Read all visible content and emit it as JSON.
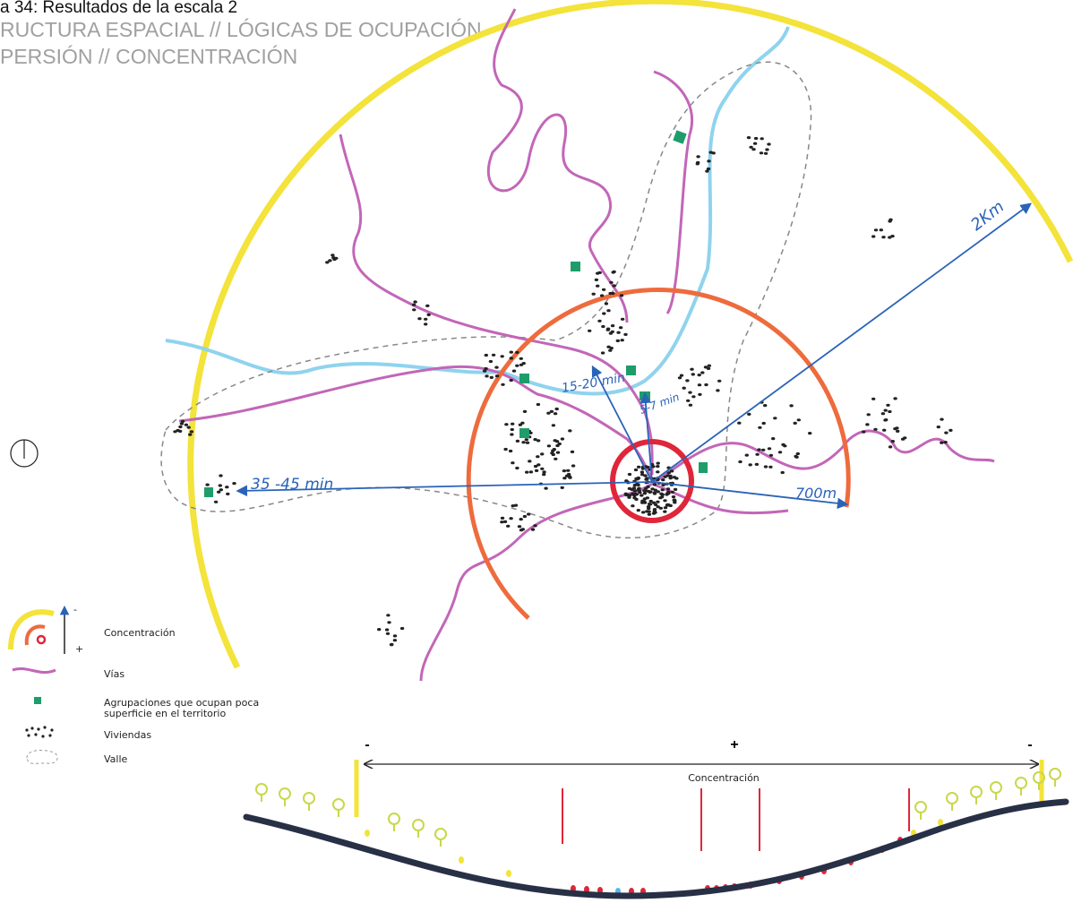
{
  "header": {
    "title_lines": [
      "a 34: Resultados de la escala 2",
      "RUCTURA ESPACIAL // LÓGICAS DE OCUPACIÓN",
      "PERSIÓN // CONCENTRACIÓN"
    ]
  },
  "map": {
    "labels": [
      "2Km",
      "15-20 min",
      "5-7 min",
      "35 -45 min",
      "700m"
    ]
  },
  "legend": {
    "concentration": {
      "label": "Concentración",
      "minus": "-",
      "plus": "+"
    },
    "items": [
      {
        "lines": [
          "Vías"
        ]
      },
      {
        "lines": [
          "Agrupaciones que ocupan poca",
          "superficie en el territorio"
        ]
      },
      {
        "lines": [
          "Viviendas"
        ]
      },
      {
        "lines": [
          "Valle"
        ]
      }
    ]
  },
  "section": {
    "markers": [
      "-",
      "+",
      "-"
    ],
    "label": "Concentración"
  }
}
